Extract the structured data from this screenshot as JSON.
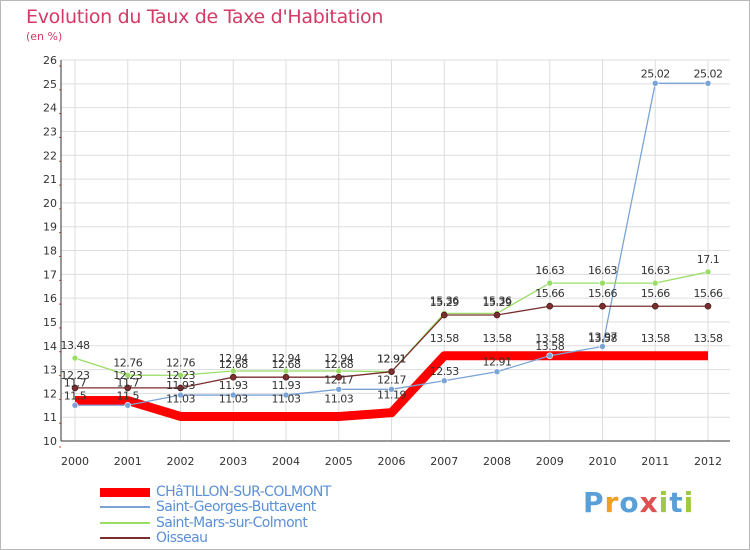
{
  "chart_data": {
    "type": "line",
    "title": "Evolution du Taux de Taxe d'Habitation",
    "subtitle": "(en %)",
    "x": [
      "2000",
      "2001",
      "2002",
      "2003",
      "2004",
      "2005",
      "2006",
      "2007",
      "2008",
      "2009",
      "2010",
      "2011",
      "2012"
    ],
    "ylim": [
      10,
      26
    ],
    "yticks": [
      "10",
      "11",
      "12",
      "13",
      "14",
      "15",
      "16",
      "17",
      "18",
      "19",
      "20",
      "21",
      "22",
      "23",
      "24",
      "25",
      "26"
    ],
    "series": [
      {
        "name": "CHâTILLON-SUR-COLMONT",
        "color": "#ff0000",
        "values": [
          11.7,
          11.7,
          11.03,
          11.03,
          11.03,
          11.03,
          11.19,
          13.58,
          13.58,
          13.58,
          13.58,
          13.58,
          13.58
        ],
        "labels": [
          "11.7",
          "11.7",
          "11.03",
          "11.03",
          "11.03",
          "11.03",
          "11.19",
          "13.58",
          "13.58",
          "13.58",
          "13.58",
          "13.58",
          "13.58"
        ]
      },
      {
        "name": "Saint-Georges-Buttavent",
        "color": "#7aa4d6",
        "values": [
          11.5,
          11.5,
          11.93,
          11.93,
          11.93,
          12.17,
          12.17,
          12.53,
          12.91,
          13.58,
          13.97,
          25.02,
          25.02
        ],
        "labels": [
          "11.5",
          "11.5",
          "11.93",
          "11.93",
          "11.93",
          "12.17",
          "12.17",
          "12.53",
          "12.91",
          "13.58",
          "13.97",
          "25.02",
          "25.02"
        ]
      },
      {
        "name": "Saint-Mars-sur-Colmont",
        "color": "#99dd66",
        "values": [
          13.48,
          12.76,
          12.76,
          12.94,
          12.94,
          12.94,
          12.91,
          15.36,
          15.36,
          16.63,
          16.63,
          16.63,
          17.1
        ],
        "labels": [
          "13.48",
          "12.76",
          "12.76",
          "12.94",
          "12.94",
          "12.94",
          "12.91",
          "15.36",
          "15.36",
          "16.63",
          "16.63",
          "16.63",
          "17.1"
        ]
      },
      {
        "name": "Oisseau",
        "color": "#7a2e2e",
        "values": [
          12.23,
          12.23,
          12.23,
          12.68,
          12.68,
          12.68,
          12.91,
          15.29,
          15.29,
          15.66,
          15.66,
          15.66,
          15.66
        ],
        "labels": [
          "12.23",
          "12.23",
          "12.23",
          "12.68",
          "12.68",
          "12.68",
          "12.91",
          "15.29",
          "15.29",
          "15.66",
          "15.66",
          "15.66",
          "15.66"
        ]
      }
    ]
  },
  "brand": {
    "letters": [
      "P",
      "r",
      "o",
      "x",
      "i",
      "t",
      "i"
    ],
    "colors": [
      "#5aa0d8",
      "#f0a020",
      "#5aa0d8",
      "#e05050",
      "#a0c840",
      "#5aa0d8",
      "#a0c840"
    ]
  }
}
